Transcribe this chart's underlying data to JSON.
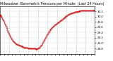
{
  "title": "Milwaukee  Barometric Pressure per Minute  (Last 24 Hours)",
  "bg_color": "#ffffff",
  "plot_bg": "#ffffff",
  "line_color": "#cc0000",
  "grid_color": "#aaaaaa",
  "y_values": [
    30.05,
    30.02,
    29.99,
    29.95,
    29.9,
    29.85,
    29.8,
    29.74,
    29.68,
    29.62,
    29.56,
    29.5,
    29.44,
    29.38,
    29.32,
    29.27,
    29.22,
    29.18,
    29.14,
    29.1,
    29.07,
    29.04,
    29.01,
    28.99,
    28.97,
    28.95,
    28.94,
    28.93,
    28.92,
    28.91,
    28.9,
    28.89,
    28.88,
    28.87,
    28.86,
    28.85,
    28.84,
    28.84,
    28.83,
    28.83,
    28.82,
    28.82,
    28.81,
    28.81,
    28.81,
    28.8,
    28.8,
    28.8,
    28.8,
    28.79,
    28.79,
    28.79,
    28.79,
    28.78,
    28.78,
    28.78,
    28.79,
    28.8,
    28.82,
    28.84,
    28.87,
    28.9,
    28.94,
    28.98,
    29.03,
    29.08,
    29.13,
    29.18,
    29.23,
    29.28,
    29.33,
    29.37,
    29.41,
    29.45,
    29.48,
    29.51,
    29.54,
    29.57,
    29.6,
    29.62,
    29.64,
    29.67,
    29.69,
    29.71,
    29.73,
    29.75,
    29.77,
    29.79,
    29.81,
    29.83,
    29.85,
    29.87,
    29.89,
    29.91,
    29.93,
    29.95,
    29.97,
    29.99,
    30.01,
    30.03,
    30.05,
    30.07,
    30.08,
    30.09,
    30.11,
    30.13,
    30.13,
    30.14,
    30.15,
    30.15,
    30.16,
    30.17,
    30.18,
    30.18,
    30.19,
    30.19,
    30.2,
    30.2,
    30.21,
    30.21,
    30.22,
    30.22,
    30.22,
    30.22,
    30.22,
    30.22,
    30.22,
    30.22,
    30.22,
    30.22,
    30.22,
    30.22,
    30.22,
    30.22,
    30.22,
    30.22,
    30.22,
    30.22,
    30.22,
    30.22,
    30.22,
    30.33
  ],
  "ylim": [
    28.6,
    30.4
  ],
  "yticks": [
    28.8,
    29.0,
    29.2,
    29.4,
    29.6,
    29.8,
    30.0,
    30.2
  ],
  "ytick_labels": [
    "28.8",
    "29.0",
    "29.2",
    "29.4",
    "29.6",
    "29.8",
    "30.0",
    "30.2"
  ],
  "num_vgrid_lines": 9,
  "title_fontsize": 3.5,
  "tick_fontsize": 2.8
}
